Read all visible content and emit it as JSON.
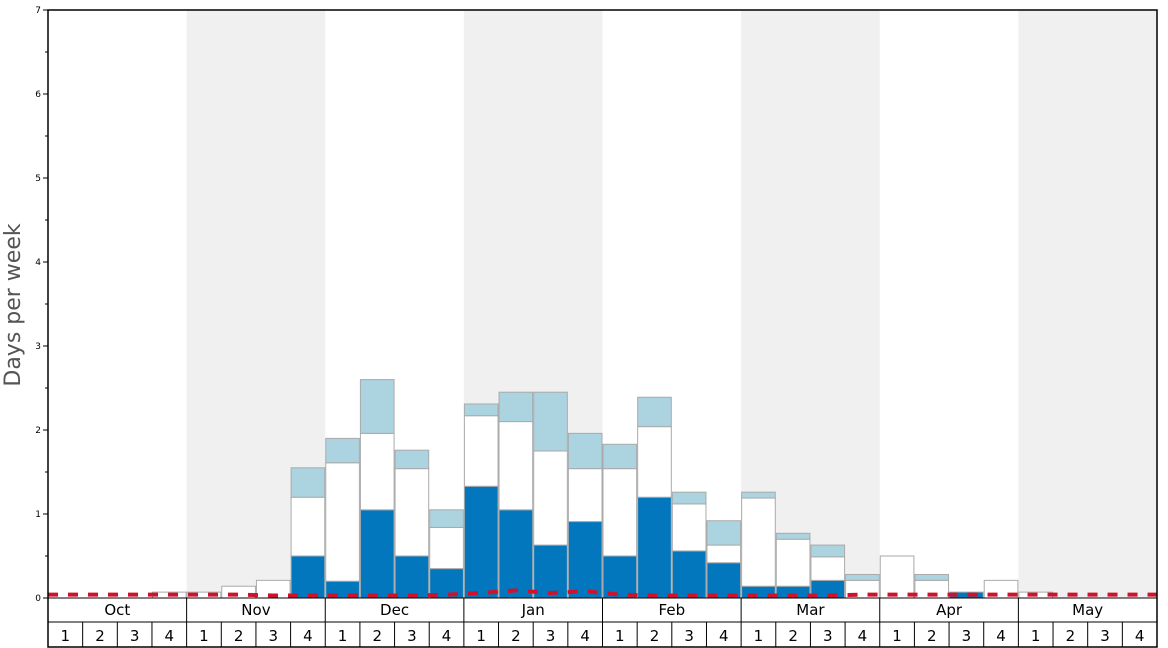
{
  "chart_data": {
    "type": "bar",
    "stacked": true,
    "ylabel": "Days per week",
    "ylim": [
      0,
      7
    ],
    "yticks": [
      "0",
      "1",
      "2",
      "3",
      "4",
      "5",
      "6",
      "7"
    ],
    "months": [
      "Oct",
      "Nov",
      "Dec",
      "Jan",
      "Feb",
      "Mar",
      "Apr",
      "May"
    ],
    "weeks": [
      "1",
      "2",
      "3",
      "4"
    ],
    "colors": {
      "dark": "#0277bd",
      "white": "#ffffff",
      "light": "#acd3e0",
      "stroke": "#aaaaaa",
      "band": "#f0f0f0",
      "baseline": "#d0112b"
    },
    "series": [
      {
        "values": [
          0,
          0,
          0,
          0,
          0,
          0,
          0,
          0.5,
          0.2,
          1.05,
          0.5,
          0.35,
          1.33,
          1.05,
          0.63,
          0.91,
          0.5,
          1.2,
          0.56,
          0.42,
          0.14,
          0.14,
          0.21,
          0,
          0,
          0,
          0.07,
          0,
          0,
          0,
          0,
          0
        ]
      },
      {
        "values": [
          0,
          0,
          0,
          0.07,
          0.07,
          0.14,
          0.21,
          0.7,
          1.41,
          0.91,
          1.04,
          0.49,
          0.84,
          1.05,
          1.12,
          0.63,
          1.04,
          0.84,
          0.56,
          0.21,
          1.05,
          0.56,
          0.28,
          0.21,
          0.5,
          0.21,
          0,
          0.21,
          0.07,
          0,
          0,
          0
        ]
      },
      {
        "values": [
          0,
          0,
          0,
          0,
          0,
          0,
          0,
          0.35,
          0.29,
          0.64,
          0.22,
          0.21,
          0.14,
          0.35,
          0.7,
          0.42,
          0.29,
          0.35,
          0.14,
          0.29,
          0.07,
          0.07,
          0.14,
          0.07,
          0,
          0.07,
          0,
          0,
          0,
          0,
          0,
          0
        ]
      }
    ],
    "baseline": [
      0.04,
      0.04,
      0.04,
      0.04,
      0.04,
      0.04,
      0.03,
      0.03,
      0.03,
      0.03,
      0.03,
      0.04,
      0.06,
      0.09,
      0.06,
      0.08,
      0.04,
      0.03,
      0.03,
      0.03,
      0.03,
      0.03,
      0.03,
      0.04,
      0.04,
      0.04,
      0.04,
      0.04,
      0.04,
      0.04,
      0.04,
      0.04
    ]
  }
}
